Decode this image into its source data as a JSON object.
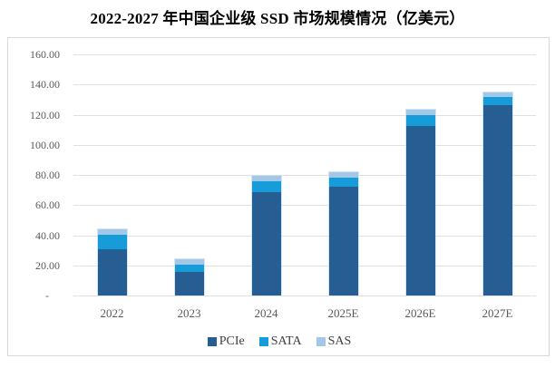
{
  "chart_data": {
    "type": "bar",
    "stacked": true,
    "title": "2022-2027 年中国企业级 SSD 市场规模情况（亿美元）",
    "unit": "亿美元",
    "categories": [
      "2022",
      "2023",
      "2024",
      "2025E",
      "2026E",
      "2027E"
    ],
    "series": [
      {
        "name": "PCIe",
        "color": "#265D92",
        "values": [
          30.5,
          15.5,
          68.5,
          72.0,
          112.5,
          126.5
        ]
      },
      {
        "name": "SATA",
        "color": "#169CD8",
        "values": [
          10.0,
          5.0,
          7.5,
          6.5,
          7.0,
          5.5
        ]
      },
      {
        "name": "SAS",
        "color": "#A3C7E6",
        "values": [
          3.5,
          3.5,
          3.5,
          3.5,
          4.0,
          3.0
        ]
      }
    ],
    "xlabel": "",
    "ylabel": "",
    "ylim": [
      0,
      160
    ],
    "ytick_step": 20,
    "ytick_labels": [
      "-",
      "20.00",
      "40.00",
      "60.00",
      "80.00",
      "100.00",
      "120.00",
      "140.00",
      "160.00"
    ],
    "grid": true,
    "legend_position": "bottom",
    "legend": [
      "PCIe",
      "SATA",
      "SAS"
    ]
  },
  "colors": {
    "background": "#FFFFFF",
    "frame_border": "#D9D9D9",
    "gridline": "#E0E0E0",
    "axis_text": "#595959",
    "legend_text": "#404040",
    "title_text": "#000000"
  }
}
